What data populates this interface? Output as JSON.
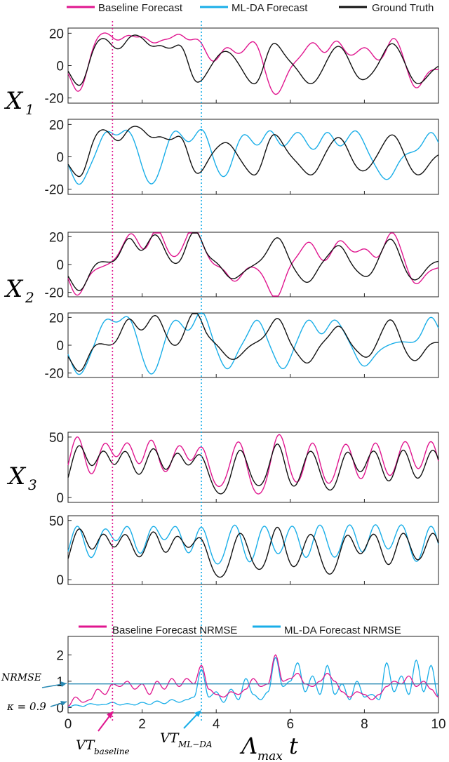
{
  "colors": {
    "baseline": "#e0168f",
    "mlda": "#19aee8",
    "truth": "#111111",
    "threshold": "#2a8ab4"
  },
  "legend_top": [
    {
      "label": "Baseline Forecast",
      "color": "#e0168f"
    },
    {
      "label": "ML-DA Forecast",
      "color": "#19aee8"
    },
    {
      "label": "Ground Truth",
      "color": "#111111"
    }
  ],
  "legend_bottom": [
    {
      "label": "Baseline Forecast NRMSE",
      "color": "#e0168f"
    },
    {
      "label": "ML-DA Forecast NRMSE",
      "color": "#19aee8"
    }
  ],
  "variable_labels": {
    "x1": {
      "main": "X",
      "sub": "1"
    },
    "x2": {
      "main": "X",
      "sub": "2"
    },
    "x3": {
      "main": "X",
      "sub": "3"
    }
  },
  "annotations": {
    "nrmse": "NRMSE",
    "kappa": "κ = 0.9",
    "vt_baseline_main": "VT",
    "vt_baseline_sub": "baseline",
    "vt_mlda_main": "VT",
    "vt_mlda_sub": "ML−DA",
    "xlabel_main": "Λ",
    "xlabel_sub": "max",
    "xlabel_tail": "t"
  },
  "chart_data": {
    "type": "line",
    "x_range": [
      0,
      10
    ],
    "x_ticks": [
      0,
      2,
      4,
      6,
      8,
      10
    ],
    "vt_baseline": 1.2,
    "vt_mlda": 3.6,
    "panels": [
      {
        "id": "x1-baseline",
        "variable": "X1",
        "ylim": [
          -20,
          20
        ],
        "y_ticks": [
          "20",
          "0",
          "-20"
        ],
        "y_tick_values": [
          20,
          0,
          -20
        ],
        "series": [
          "baseline",
          "truth"
        ],
        "peaks": [
          {
            "x": 0.3,
            "y": -17
          },
          {
            "x": 0.75,
            "y": 13
          },
          {
            "x": 1.1,
            "y": 15
          },
          {
            "x": 1.6,
            "y": 16
          },
          {
            "x": 2.05,
            "y": 15
          },
          {
            "x": 2.55,
            "y": 13
          },
          {
            "x": 3.0,
            "y": 17
          },
          {
            "x": 3.5,
            "y": 15
          },
          {
            "x": 4.3,
            "y": 11
          },
          {
            "x": 5.0,
            "y": 15
          },
          {
            "x": 5.6,
            "y": -18
          },
          {
            "x": 6.6,
            "y": 14
          },
          {
            "x": 7.25,
            "y": 15
          },
          {
            "x": 8.0,
            "y": 11
          },
          {
            "x": 8.8,
            "y": 17
          },
          {
            "x": 9.4,
            "y": -14
          }
        ]
      },
      {
        "id": "x1-mlda",
        "variable": "X1",
        "ylim": [
          -20,
          20
        ],
        "y_ticks": [
          "20",
          "0",
          "-20"
        ],
        "y_tick_values": [
          20,
          0,
          -20
        ],
        "series": [
          "mlda",
          "truth"
        ],
        "peaks": [
          {
            "x": 0.3,
            "y": -17
          },
          {
            "x": 1.05,
            "y": 15
          },
          {
            "x": 1.6,
            "y": 16
          },
          {
            "x": 2.25,
            "y": -17
          },
          {
            "x": 2.9,
            "y": 16
          },
          {
            "x": 3.6,
            "y": 17
          },
          {
            "x": 4.2,
            "y": -13
          },
          {
            "x": 4.75,
            "y": 14
          },
          {
            "x": 5.45,
            "y": 16
          },
          {
            "x": 6.2,
            "y": 15
          },
          {
            "x": 7.0,
            "y": 15
          },
          {
            "x": 7.75,
            "y": 16
          },
          {
            "x": 8.6,
            "y": -14
          },
          {
            "x": 9.8,
            "y": 15
          }
        ]
      },
      {
        "id": "x2-baseline",
        "variable": "X2",
        "ylim": [
          -20,
          20
        ],
        "y_ticks": [
          "20",
          "0",
          "-20"
        ],
        "y_tick_values": [
          20,
          0,
          -20
        ],
        "series": [
          "baseline",
          "truth"
        ],
        "peaks": [
          {
            "x": 0.25,
            "y": -22
          },
          {
            "x": 1.7,
            "y": 22
          },
          {
            "x": 2.4,
            "y": 25
          },
          {
            "x": 3.35,
            "y": 24
          },
          {
            "x": 3.6,
            "y": 5
          },
          {
            "x": 4.5,
            "y": -12
          },
          {
            "x": 5.6,
            "y": -24
          },
          {
            "x": 6.5,
            "y": 16
          },
          {
            "x": 7.35,
            "y": 17
          },
          {
            "x": 8.0,
            "y": 11
          },
          {
            "x": 8.75,
            "y": 23
          },
          {
            "x": 9.4,
            "y": -14
          }
        ]
      },
      {
        "id": "x2-mlda",
        "variable": "X2",
        "ylim": [
          -20,
          20
        ],
        "y_ticks": [
          "20",
          "0",
          "-20"
        ],
        "y_tick_values": [
          20,
          0,
          -20
        ],
        "series": [
          "mlda",
          "truth"
        ],
        "peaks": [
          {
            "x": 0.3,
            "y": -21
          },
          {
            "x": 1.05,
            "y": 18
          },
          {
            "x": 1.6,
            "y": 20
          },
          {
            "x": 2.25,
            "y": -21
          },
          {
            "x": 2.9,
            "y": 18
          },
          {
            "x": 3.6,
            "y": 24
          },
          {
            "x": 4.3,
            "y": -17
          },
          {
            "x": 5.1,
            "y": 18
          },
          {
            "x": 5.8,
            "y": -17
          },
          {
            "x": 6.5,
            "y": 18
          },
          {
            "x": 7.2,
            "y": 18
          },
          {
            "x": 8.0,
            "y": -15
          },
          {
            "x": 9.8,
            "y": 20
          }
        ]
      },
      {
        "id": "x3-baseline",
        "variable": "X3",
        "ylim": [
          0,
          50
        ],
        "y_ticks": [
          "50",
          "0"
        ],
        "y_tick_values": [
          50,
          0
        ],
        "series": [
          "baseline",
          "truth"
        ],
        "peaks": [
          {
            "x": 0.25,
            "y": 50
          },
          {
            "x": 1.0,
            "y": 44
          },
          {
            "x": 1.6,
            "y": 44
          },
          {
            "x": 2.25,
            "y": 47
          },
          {
            "x": 3.0,
            "y": 42
          },
          {
            "x": 3.6,
            "y": 41
          },
          {
            "x": 4.6,
            "y": 46
          },
          {
            "x": 5.7,
            "y": 52
          },
          {
            "x": 6.6,
            "y": 45
          },
          {
            "x": 7.5,
            "y": 44
          },
          {
            "x": 8.3,
            "y": 45
          },
          {
            "x": 9.1,
            "y": 46
          },
          {
            "x": 9.8,
            "y": 46
          }
        ]
      },
      {
        "id": "x3-mlda",
        "variable": "X3",
        "ylim": [
          0,
          50
        ],
        "y_ticks": [
          "50",
          "0"
        ],
        "y_tick_values": [
          50,
          0
        ],
        "series": [
          "mlda",
          "truth"
        ],
        "peaks": [
          {
            "x": 0.25,
            "y": 45
          },
          {
            "x": 1.0,
            "y": 42
          },
          {
            "x": 1.6,
            "y": 44
          },
          {
            "x": 2.3,
            "y": 44
          },
          {
            "x": 2.9,
            "y": 44
          },
          {
            "x": 3.6,
            "y": 44
          },
          {
            "x": 4.5,
            "y": 46
          },
          {
            "x": 5.3,
            "y": 45
          },
          {
            "x": 6.05,
            "y": 45
          },
          {
            "x": 6.8,
            "y": 46
          },
          {
            "x": 7.6,
            "y": 46
          },
          {
            "x": 8.3,
            "y": 46
          },
          {
            "x": 9.0,
            "y": 46
          },
          {
            "x": 9.8,
            "y": 45
          }
        ]
      },
      {
        "id": "nrmse",
        "variable": "NRMSE",
        "ylim": [
          0,
          2.5
        ],
        "y_ticks": [
          "2",
          "1",
          "0"
        ],
        "y_tick_values": [
          2,
          1,
          0
        ],
        "threshold": 0.9,
        "x_tick_labels": [
          "0",
          "2",
          "4",
          "6",
          "8",
          "10"
        ],
        "baseline_points": [
          {
            "x": 0.0,
            "y": 0.05
          },
          {
            "x": 0.2,
            "y": 0.4
          },
          {
            "x": 0.4,
            "y": 0.2
          },
          {
            "x": 0.6,
            "y": 0.3
          },
          {
            "x": 0.8,
            "y": 0.7
          },
          {
            "x": 1.0,
            "y": 0.5
          },
          {
            "x": 1.2,
            "y": 0.9
          },
          {
            "x": 1.4,
            "y": 0.8
          },
          {
            "x": 1.6,
            "y": 1.0
          },
          {
            "x": 1.8,
            "y": 0.7
          },
          {
            "x": 2.0,
            "y": 0.9
          },
          {
            "x": 2.2,
            "y": 0.5
          },
          {
            "x": 2.4,
            "y": 1.0
          },
          {
            "x": 2.6,
            "y": 0.7
          },
          {
            "x": 2.8,
            "y": 1.1
          },
          {
            "x": 3.0,
            "y": 0.8
          },
          {
            "x": 3.2,
            "y": 1.1
          },
          {
            "x": 3.4,
            "y": 0.9
          },
          {
            "x": 3.6,
            "y": 1.6
          },
          {
            "x": 3.8,
            "y": 0.7
          },
          {
            "x": 4.0,
            "y": 0.5
          },
          {
            "x": 4.2,
            "y": 0.4
          },
          {
            "x": 4.4,
            "y": 0.6
          },
          {
            "x": 4.6,
            "y": 0.5
          },
          {
            "x": 4.8,
            "y": 0.7
          },
          {
            "x": 5.0,
            "y": 1.1
          },
          {
            "x": 5.2,
            "y": 0.8
          },
          {
            "x": 5.4,
            "y": 0.9
          },
          {
            "x": 5.6,
            "y": 2.0
          },
          {
            "x": 5.8,
            "y": 1.0
          },
          {
            "x": 6.0,
            "y": 1.1
          },
          {
            "x": 6.2,
            "y": 1.3
          },
          {
            "x": 6.4,
            "y": 0.9
          },
          {
            "x": 6.6,
            "y": 0.8
          },
          {
            "x": 6.8,
            "y": 1.0
          },
          {
            "x": 7.0,
            "y": 1.3
          },
          {
            "x": 7.2,
            "y": 1.0
          },
          {
            "x": 7.4,
            "y": 0.6
          },
          {
            "x": 7.6,
            "y": 0.4
          },
          {
            "x": 7.8,
            "y": 0.6
          },
          {
            "x": 8.0,
            "y": 0.5
          },
          {
            "x": 8.2,
            "y": 0.3
          },
          {
            "x": 8.4,
            "y": 0.5
          },
          {
            "x": 8.6,
            "y": 0.8
          },
          {
            "x": 8.8,
            "y": 1.0
          },
          {
            "x": 9.0,
            "y": 0.9
          },
          {
            "x": 9.2,
            "y": 1.2
          },
          {
            "x": 9.4,
            "y": 0.8
          },
          {
            "x": 9.6,
            "y": 1.0
          },
          {
            "x": 9.8,
            "y": 0.7
          },
          {
            "x": 10.0,
            "y": 0.4
          }
        ],
        "mlda_points": [
          {
            "x": 0.0,
            "y": 0.02
          },
          {
            "x": 0.2,
            "y": 0.1
          },
          {
            "x": 0.4,
            "y": 0.05
          },
          {
            "x": 0.6,
            "y": 0.15
          },
          {
            "x": 0.8,
            "y": 0.1
          },
          {
            "x": 1.0,
            "y": 0.12
          },
          {
            "x": 1.2,
            "y": 0.2
          },
          {
            "x": 1.4,
            "y": 0.1
          },
          {
            "x": 1.6,
            "y": 0.15
          },
          {
            "x": 1.8,
            "y": 0.1
          },
          {
            "x": 2.0,
            "y": 0.2
          },
          {
            "x": 2.2,
            "y": 0.12
          },
          {
            "x": 2.4,
            "y": 0.25
          },
          {
            "x": 2.6,
            "y": 0.15
          },
          {
            "x": 2.8,
            "y": 0.3
          },
          {
            "x": 3.0,
            "y": 0.2
          },
          {
            "x": 3.2,
            "y": 0.3
          },
          {
            "x": 3.4,
            "y": 0.4
          },
          {
            "x": 3.6,
            "y": 1.45
          },
          {
            "x": 3.8,
            "y": 0.4
          },
          {
            "x": 4.0,
            "y": 0.6
          },
          {
            "x": 4.2,
            "y": 0.2
          },
          {
            "x": 4.4,
            "y": 0.7
          },
          {
            "x": 4.6,
            "y": 0.3
          },
          {
            "x": 4.8,
            "y": 1.1
          },
          {
            "x": 5.0,
            "y": 0.5
          },
          {
            "x": 5.2,
            "y": 0.3
          },
          {
            "x": 5.4,
            "y": 0.6
          },
          {
            "x": 5.6,
            "y": 1.9
          },
          {
            "x": 5.8,
            "y": 0.8
          },
          {
            "x": 6.0,
            "y": 1.0
          },
          {
            "x": 6.2,
            "y": 1.7
          },
          {
            "x": 6.4,
            "y": 0.6
          },
          {
            "x": 6.6,
            "y": 1.2
          },
          {
            "x": 6.8,
            "y": 0.5
          },
          {
            "x": 7.0,
            "y": 1.6
          },
          {
            "x": 7.2,
            "y": 0.5
          },
          {
            "x": 7.4,
            "y": 0.9
          },
          {
            "x": 7.6,
            "y": 0.3
          },
          {
            "x": 7.8,
            "y": 1.0
          },
          {
            "x": 8.0,
            "y": 0.4
          },
          {
            "x": 8.2,
            "y": 0.5
          },
          {
            "x": 8.4,
            "y": 0.3
          },
          {
            "x": 8.6,
            "y": 1.7
          },
          {
            "x": 8.8,
            "y": 0.6
          },
          {
            "x": 9.0,
            "y": 1.2
          },
          {
            "x": 9.2,
            "y": 0.5
          },
          {
            "x": 9.4,
            "y": 1.8
          },
          {
            "x": 9.6,
            "y": 0.6
          },
          {
            "x": 9.8,
            "y": 1.6
          },
          {
            "x": 10.0,
            "y": 0.4
          }
        ]
      }
    ]
  }
}
